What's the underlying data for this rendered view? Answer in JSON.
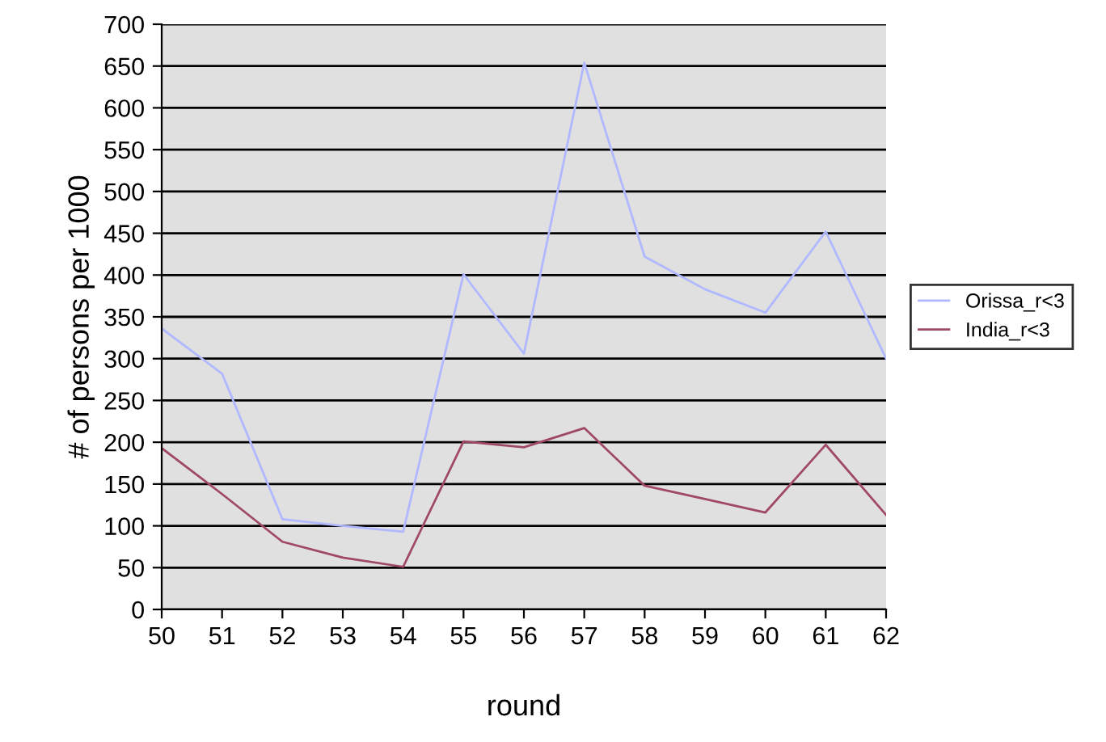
{
  "chart_data": {
    "type": "line",
    "xlabel": "round",
    "ylabel": "# of persons per 1000",
    "x": [
      50,
      51,
      52,
      53,
      54,
      55,
      56,
      57,
      58,
      59,
      60,
      61,
      62
    ],
    "xlim": [
      50,
      62
    ],
    "xticks": [
      50,
      51,
      52,
      53,
      54,
      55,
      56,
      57,
      58,
      59,
      60,
      61,
      62
    ],
    "ylim": [
      0,
      700
    ],
    "yticks": [
      0,
      50,
      100,
      150,
      200,
      250,
      300,
      350,
      400,
      450,
      500,
      550,
      600,
      650,
      700
    ],
    "grid": "y",
    "legend": "right",
    "marker": "none",
    "line_style": "solid",
    "series": [
      {
        "name": "Orissa_r<3",
        "color": "#b0b8ff",
        "values": [
          336,
          282,
          108,
          100,
          93,
          401,
          306,
          654,
          422,
          383,
          355,
          452,
          300
        ]
      },
      {
        "name": "India_r<3",
        "color": "#a04868",
        "values": [
          193,
          138,
          81,
          62,
          51,
          201,
          194,
          217,
          148,
          132,
          116,
          197,
          113
        ]
      }
    ]
  }
}
